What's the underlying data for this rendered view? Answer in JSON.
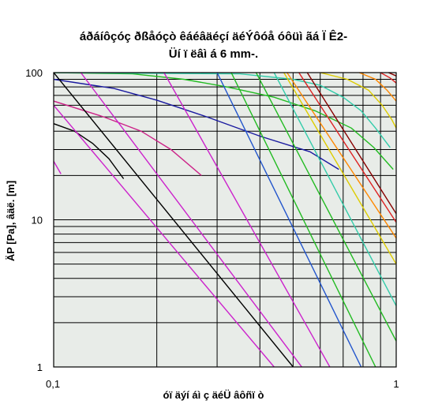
{
  "chart_data": {
    "type": "line",
    "title": "áðáíôçóç ðßåóçò êáéâäéçí äéÝôóå óôüì ãá Ï Ê2-",
    "subtitle": "Üí ï ëâì á 6 mm-.",
    "xlabel": "óï äýí áì ç äéÜ âôñï ò",
    "ylabel": "ÄP [Pa], âäë. [m]",
    "x_scale": "log",
    "y_scale": "log",
    "xlim": [
      0.1,
      1
    ],
    "ylim": [
      1,
      100
    ],
    "x_ticks": [
      "0,1",
      "1"
    ],
    "y_ticks": [
      "1",
      "10",
      "100"
    ],
    "grid": true,
    "legend": "none",
    "background": "#e8ece8",
    "series": [
      {
        "color": "#cc22cc",
        "points": [
          [
            0.1,
            25
          ],
          [
            0.105,
            20.5
          ]
        ]
      },
      {
        "color": "#000000",
        "points": [
          [
            0.1,
            45
          ],
          [
            0.115,
            40
          ],
          [
            0.13,
            33
          ],
          [
            0.145,
            26
          ],
          [
            0.16,
            19
          ]
        ]
      },
      {
        "color": "#cc2288",
        "points": [
          [
            0.1,
            64
          ],
          [
            0.14,
            50
          ],
          [
            0.18,
            40
          ],
          [
            0.22,
            30
          ],
          [
            0.27,
            20
          ]
        ]
      },
      {
        "color": "#1a1aa0",
        "points": [
          [
            0.1,
            90
          ],
          [
            0.15,
            78
          ],
          [
            0.2,
            65
          ],
          [
            0.28,
            50
          ],
          [
            0.4,
            37
          ],
          [
            0.56,
            29
          ],
          [
            0.68,
            22
          ]
        ]
      },
      {
        "color": "#22bb22",
        "points": [
          [
            0.1,
            100
          ],
          [
            0.17,
            98
          ],
          [
            0.24,
            90
          ],
          [
            0.32,
            80
          ],
          [
            0.44,
            68
          ],
          [
            0.58,
            55
          ],
          [
            0.74,
            42
          ],
          [
            0.86,
            31
          ],
          [
            0.98,
            22
          ]
        ]
      },
      {
        "color": "#33ccaa",
        "points": [
          [
            0.1,
            100
          ],
          [
            0.35,
            98
          ],
          [
            0.5,
            90
          ],
          [
            0.6,
            82
          ],
          [
            0.7,
            68
          ],
          [
            0.79,
            55
          ],
          [
            0.87,
            42
          ],
          [
            0.96,
            31
          ]
        ]
      },
      {
        "color": "#ddcc00",
        "points": [
          [
            0.6,
            100
          ],
          [
            0.72,
            90
          ],
          [
            0.83,
            76
          ],
          [
            0.91,
            60
          ],
          [
            0.97,
            48
          ],
          [
            1,
            42
          ]
        ]
      },
      {
        "color": "#ff8800",
        "points": [
          [
            0.78,
            100
          ],
          [
            0.87,
            90
          ],
          [
            0.94,
            76
          ],
          [
            1,
            64
          ]
        ]
      },
      {
        "color": "#dd2222",
        "points": [
          [
            0.9,
            100
          ],
          [
            0.96,
            92
          ],
          [
            1,
            85
          ]
        ]
      },
      {
        "color": "#880000",
        "points": [
          [
            0.95,
            100
          ],
          [
            1,
            95
          ]
        ]
      },
      {
        "color": "#000000",
        "points": [
          [
            0.1,
            100
          ],
          [
            0.5,
            1
          ]
        ]
      },
      {
        "color": "#cc22cc",
        "points": [
          [
            0.1,
            60
          ],
          [
            0.44,
            1
          ]
        ]
      },
      {
        "color": "#cc22cc",
        "points": [
          [
            0.12,
            100
          ],
          [
            0.53,
            1
          ]
        ]
      },
      {
        "color": "#cc22cc",
        "points": [
          [
            0.21,
            100
          ],
          [
            0.64,
            1
          ]
        ]
      },
      {
        "color": "#2255cc",
        "points": [
          [
            0.3,
            100
          ],
          [
            0.79,
            1
          ]
        ]
      },
      {
        "color": "#22bb22",
        "points": [
          [
            0.33,
            100
          ],
          [
            0.87,
            1
          ]
        ]
      },
      {
        "color": "#22bb22",
        "points": [
          [
            0.39,
            100
          ],
          [
            1,
            1.5
          ]
        ]
      },
      {
        "color": "#33ccaa",
        "points": [
          [
            0.44,
            100
          ],
          [
            1,
            2.6
          ]
        ]
      },
      {
        "color": "#ddcc00",
        "points": [
          [
            0.47,
            100
          ],
          [
            1,
            5
          ]
        ]
      },
      {
        "color": "#ff8800",
        "points": [
          [
            0.48,
            100
          ],
          [
            1,
            7.5
          ]
        ]
      },
      {
        "color": "#dd2222",
        "points": [
          [
            0.52,
            100
          ],
          [
            1,
            9.6
          ]
        ]
      },
      {
        "color": "#880000",
        "points": [
          [
            0.55,
            100
          ],
          [
            1,
            11
          ]
        ]
      }
    ]
  }
}
